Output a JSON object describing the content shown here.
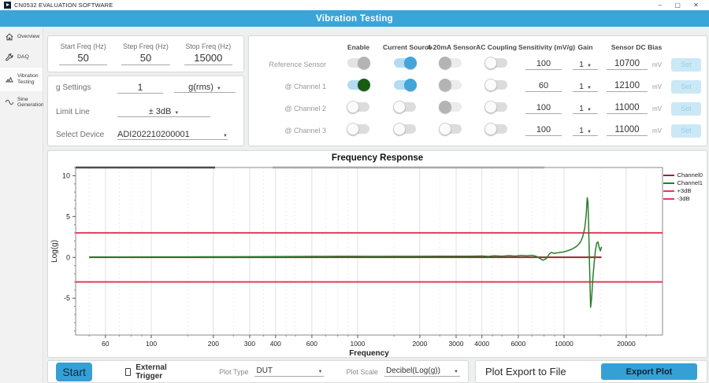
{
  "window": {
    "title": "CN0532 EVALUATION SOFTWARE",
    "controls": {
      "minimize": "–",
      "maximize": "▢",
      "close": "✕"
    }
  },
  "header": {
    "title": "Vibration Testing"
  },
  "sidebar": {
    "items": [
      {
        "label": "Overview",
        "icon": "home-icon",
        "selected": false
      },
      {
        "label": "DAQ",
        "icon": "wrench-icon",
        "selected": false
      },
      {
        "label": "Vibration Testing",
        "icon": "chart-icon",
        "selected": true
      },
      {
        "label": "Sine Generation",
        "icon": "sine-icon",
        "selected": false
      }
    ]
  },
  "sweep": {
    "fields": [
      {
        "label": "Start Freq (Hz)",
        "value": "50"
      },
      {
        "label": "Step Freq (Hz)",
        "value": "50"
      },
      {
        "label": "Stop Freq (Hz)",
        "value": "15000"
      }
    ]
  },
  "settings": {
    "g_settings_label": "g Settings",
    "g_value": "1",
    "g_unit": "g(rms)",
    "limit_line_label": "Limit Line",
    "limit_line_value": "± 3dB",
    "select_device_label": "Select Device",
    "device_value": "ADI202210200001"
  },
  "channels": {
    "headers": [
      "Enable",
      "Current Source",
      "4-20mA Sensor",
      "AC Coupling",
      "Sensitivity (mV/g)",
      "Gain",
      "Sensor DC Bias"
    ],
    "rows": [
      {
        "label": "Reference Sensor",
        "toggles": {
          "enable": "on-gray",
          "current_source": "on-blue",
          "sensor_420": "disabled",
          "ac_coupling": "off"
        },
        "sensitivity": "100",
        "gain": "1",
        "bias": "10700",
        "bias_unit": "mV",
        "set_label": "Set"
      },
      {
        "label": "@ Channel 1",
        "toggles": {
          "enable": "on-green",
          "current_source": "on-blue",
          "sensor_420": "disabled",
          "ac_coupling": "off"
        },
        "sensitivity": "60",
        "gain": "1",
        "bias": "12100",
        "bias_unit": "mV",
        "set_label": "Set"
      },
      {
        "label": "@ Channel 2",
        "toggles": {
          "enable": "off",
          "current_source": "off",
          "sensor_420": "disabled",
          "ac_coupling": "off"
        },
        "sensitivity": "100",
        "gain": "1",
        "bias": "11000",
        "bias_unit": "mV",
        "set_label": "Set"
      },
      {
        "label": "@ Channel 3",
        "toggles": {
          "enable": "off",
          "current_source": "off",
          "sensor_420": "off",
          "ac_coupling": "off"
        },
        "sensitivity": "100",
        "gain": "1",
        "bias": "11000",
        "bias_unit": "mV",
        "set_label": "Set"
      }
    ]
  },
  "chart_data": {
    "type": "line",
    "title": "Frequency Response",
    "xlabel": "Frequency",
    "ylabel": "Log(g)",
    "x_scale": "log",
    "xlim": [
      43,
      30000
    ],
    "ylim": [
      -9.5,
      11
    ],
    "x_ticks": [
      60,
      100,
      200,
      300,
      400,
      600,
      1000,
      2000,
      3000,
      4000,
      6000,
      10000,
      20000
    ],
    "x_minor_ticks": [
      50,
      70,
      80,
      90,
      150,
      250,
      350,
      450,
      500,
      700,
      800,
      900,
      1500,
      2500,
      3500,
      4500,
      5000,
      7000,
      8000,
      9000,
      15000,
      25000
    ],
    "y_ticks": [
      -5,
      0,
      5,
      10
    ],
    "grid": true,
    "legend_position": "right",
    "series": [
      {
        "name": "Channel0",
        "color": "#9b2433",
        "width": 2,
        "layer": 1,
        "points": [
          [
            50,
            0.02
          ],
          [
            15200,
            0.02
          ]
        ]
      },
      {
        "name": "Channel1",
        "color": "#2a7d2a",
        "width": 1.5,
        "layer": 2,
        "points": [
          [
            50,
            0.05
          ],
          [
            70,
            0.06
          ],
          [
            100,
            0.07
          ],
          [
            150,
            0.07
          ],
          [
            200,
            0.08
          ],
          [
            300,
            0.09
          ],
          [
            400,
            0.1
          ],
          [
            500,
            0.11
          ],
          [
            600,
            0.12
          ],
          [
            700,
            0.12
          ],
          [
            800,
            0.13
          ],
          [
            1000,
            0.13
          ],
          [
            1200,
            0.12
          ],
          [
            1500,
            0.13
          ],
          [
            2000,
            0.13
          ],
          [
            2500,
            0.15
          ],
          [
            3000,
            0.15
          ],
          [
            3500,
            0.14
          ],
          [
            4000,
            0.17
          ],
          [
            4300,
            0.12
          ],
          [
            4600,
            0.2
          ],
          [
            5000,
            0.15
          ],
          [
            5400,
            0.22
          ],
          [
            5800,
            0.16
          ],
          [
            6200,
            0.24
          ],
          [
            6600,
            0.19
          ],
          [
            7000,
            0.26
          ],
          [
            7300,
            0.15
          ],
          [
            7600,
            -0.1
          ],
          [
            7900,
            -0.35
          ],
          [
            8200,
            -0.15
          ],
          [
            8500,
            0.45
          ],
          [
            8700,
            0.62
          ],
          [
            8900,
            0.5
          ],
          [
            9200,
            0.55
          ],
          [
            9600,
            0.62
          ],
          [
            10000,
            0.68
          ],
          [
            10500,
            0.85
          ],
          [
            11000,
            1.05
          ],
          [
            11500,
            1.35
          ],
          [
            12000,
            1.85
          ],
          [
            12300,
            2.5
          ],
          [
            12600,
            3.6
          ],
          [
            12800,
            5.2
          ],
          [
            12950,
            7.3
          ],
          [
            13050,
            6.8
          ],
          [
            13150,
            4.0
          ],
          [
            13250,
            0.5
          ],
          [
            13350,
            -3.0
          ],
          [
            13450,
            -6.1
          ],
          [
            13600,
            -5.0
          ],
          [
            13800,
            -2.5
          ],
          [
            14000,
            -0.6
          ],
          [
            14200,
            0.9
          ],
          [
            14400,
            1.75
          ],
          [
            14600,
            1.9
          ],
          [
            14800,
            1.2
          ],
          [
            15000,
            0.8
          ],
          [
            15200,
            1.3
          ]
        ]
      },
      {
        "name": "+3dB",
        "color": "#e23b5b",
        "width": 2,
        "layer": 0,
        "points": [
          [
            43,
            3
          ],
          [
            30000,
            3
          ]
        ]
      },
      {
        "name": "-3dB",
        "color": "#e23b5b",
        "width": 2,
        "layer": 0,
        "points": [
          [
            43,
            -3
          ],
          [
            30000,
            -3
          ]
        ]
      }
    ]
  },
  "footer": {
    "start_label": "Start",
    "external_trigger_label": "External Trigger",
    "external_trigger_checked": false,
    "plot_type_label": "Plot Type",
    "plot_type_value": "DUT",
    "plot_scale_label": "Plot Scale",
    "plot_scale_value": "Decibel(Log(g))",
    "export_title": "Plot Export to File",
    "export_button_label": "Export Plot"
  },
  "colors": {
    "accent": "#3aa5d9",
    "toggle_on_blue": "#41a5da",
    "toggle_on_green": "#185c12",
    "channel0": "#9b2433",
    "channel1": "#2a7d2a",
    "limit_line": "#e23b5b"
  }
}
